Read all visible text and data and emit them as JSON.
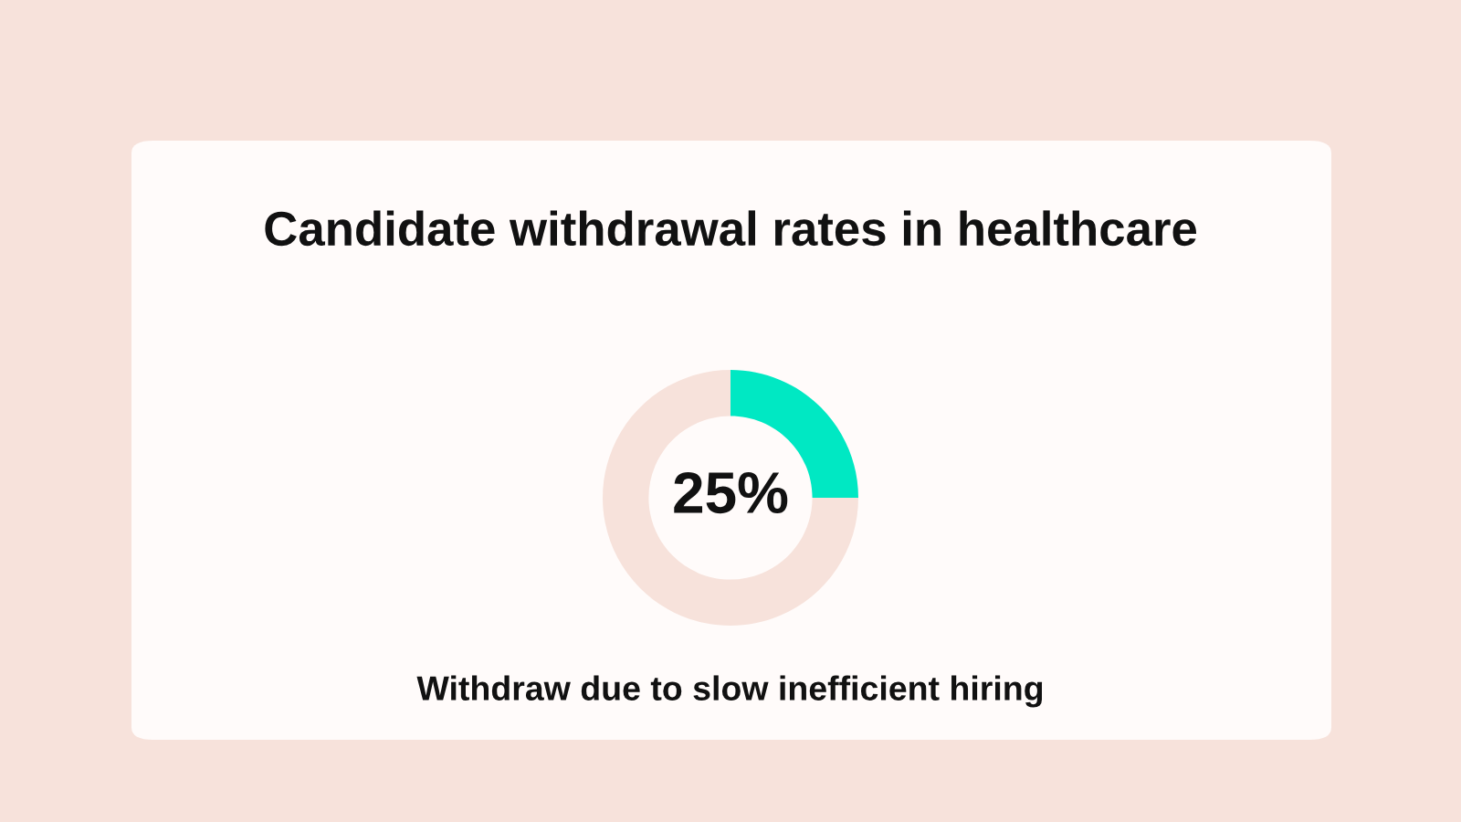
{
  "chart_data": {
    "type": "donut",
    "title": "Candidate withdrawal rates in healthcare",
    "categories": [
      null,
      null
    ],
    "values": [
      25,
      75
    ],
    "colors": [
      "#00e8c3",
      "#f7e2db"
    ],
    "value_labels": [
      "25%",
      null
    ],
    "annotations": [
      "Withdraw due to slow inefficient hiring"
    ],
    "legend": false
  }
}
